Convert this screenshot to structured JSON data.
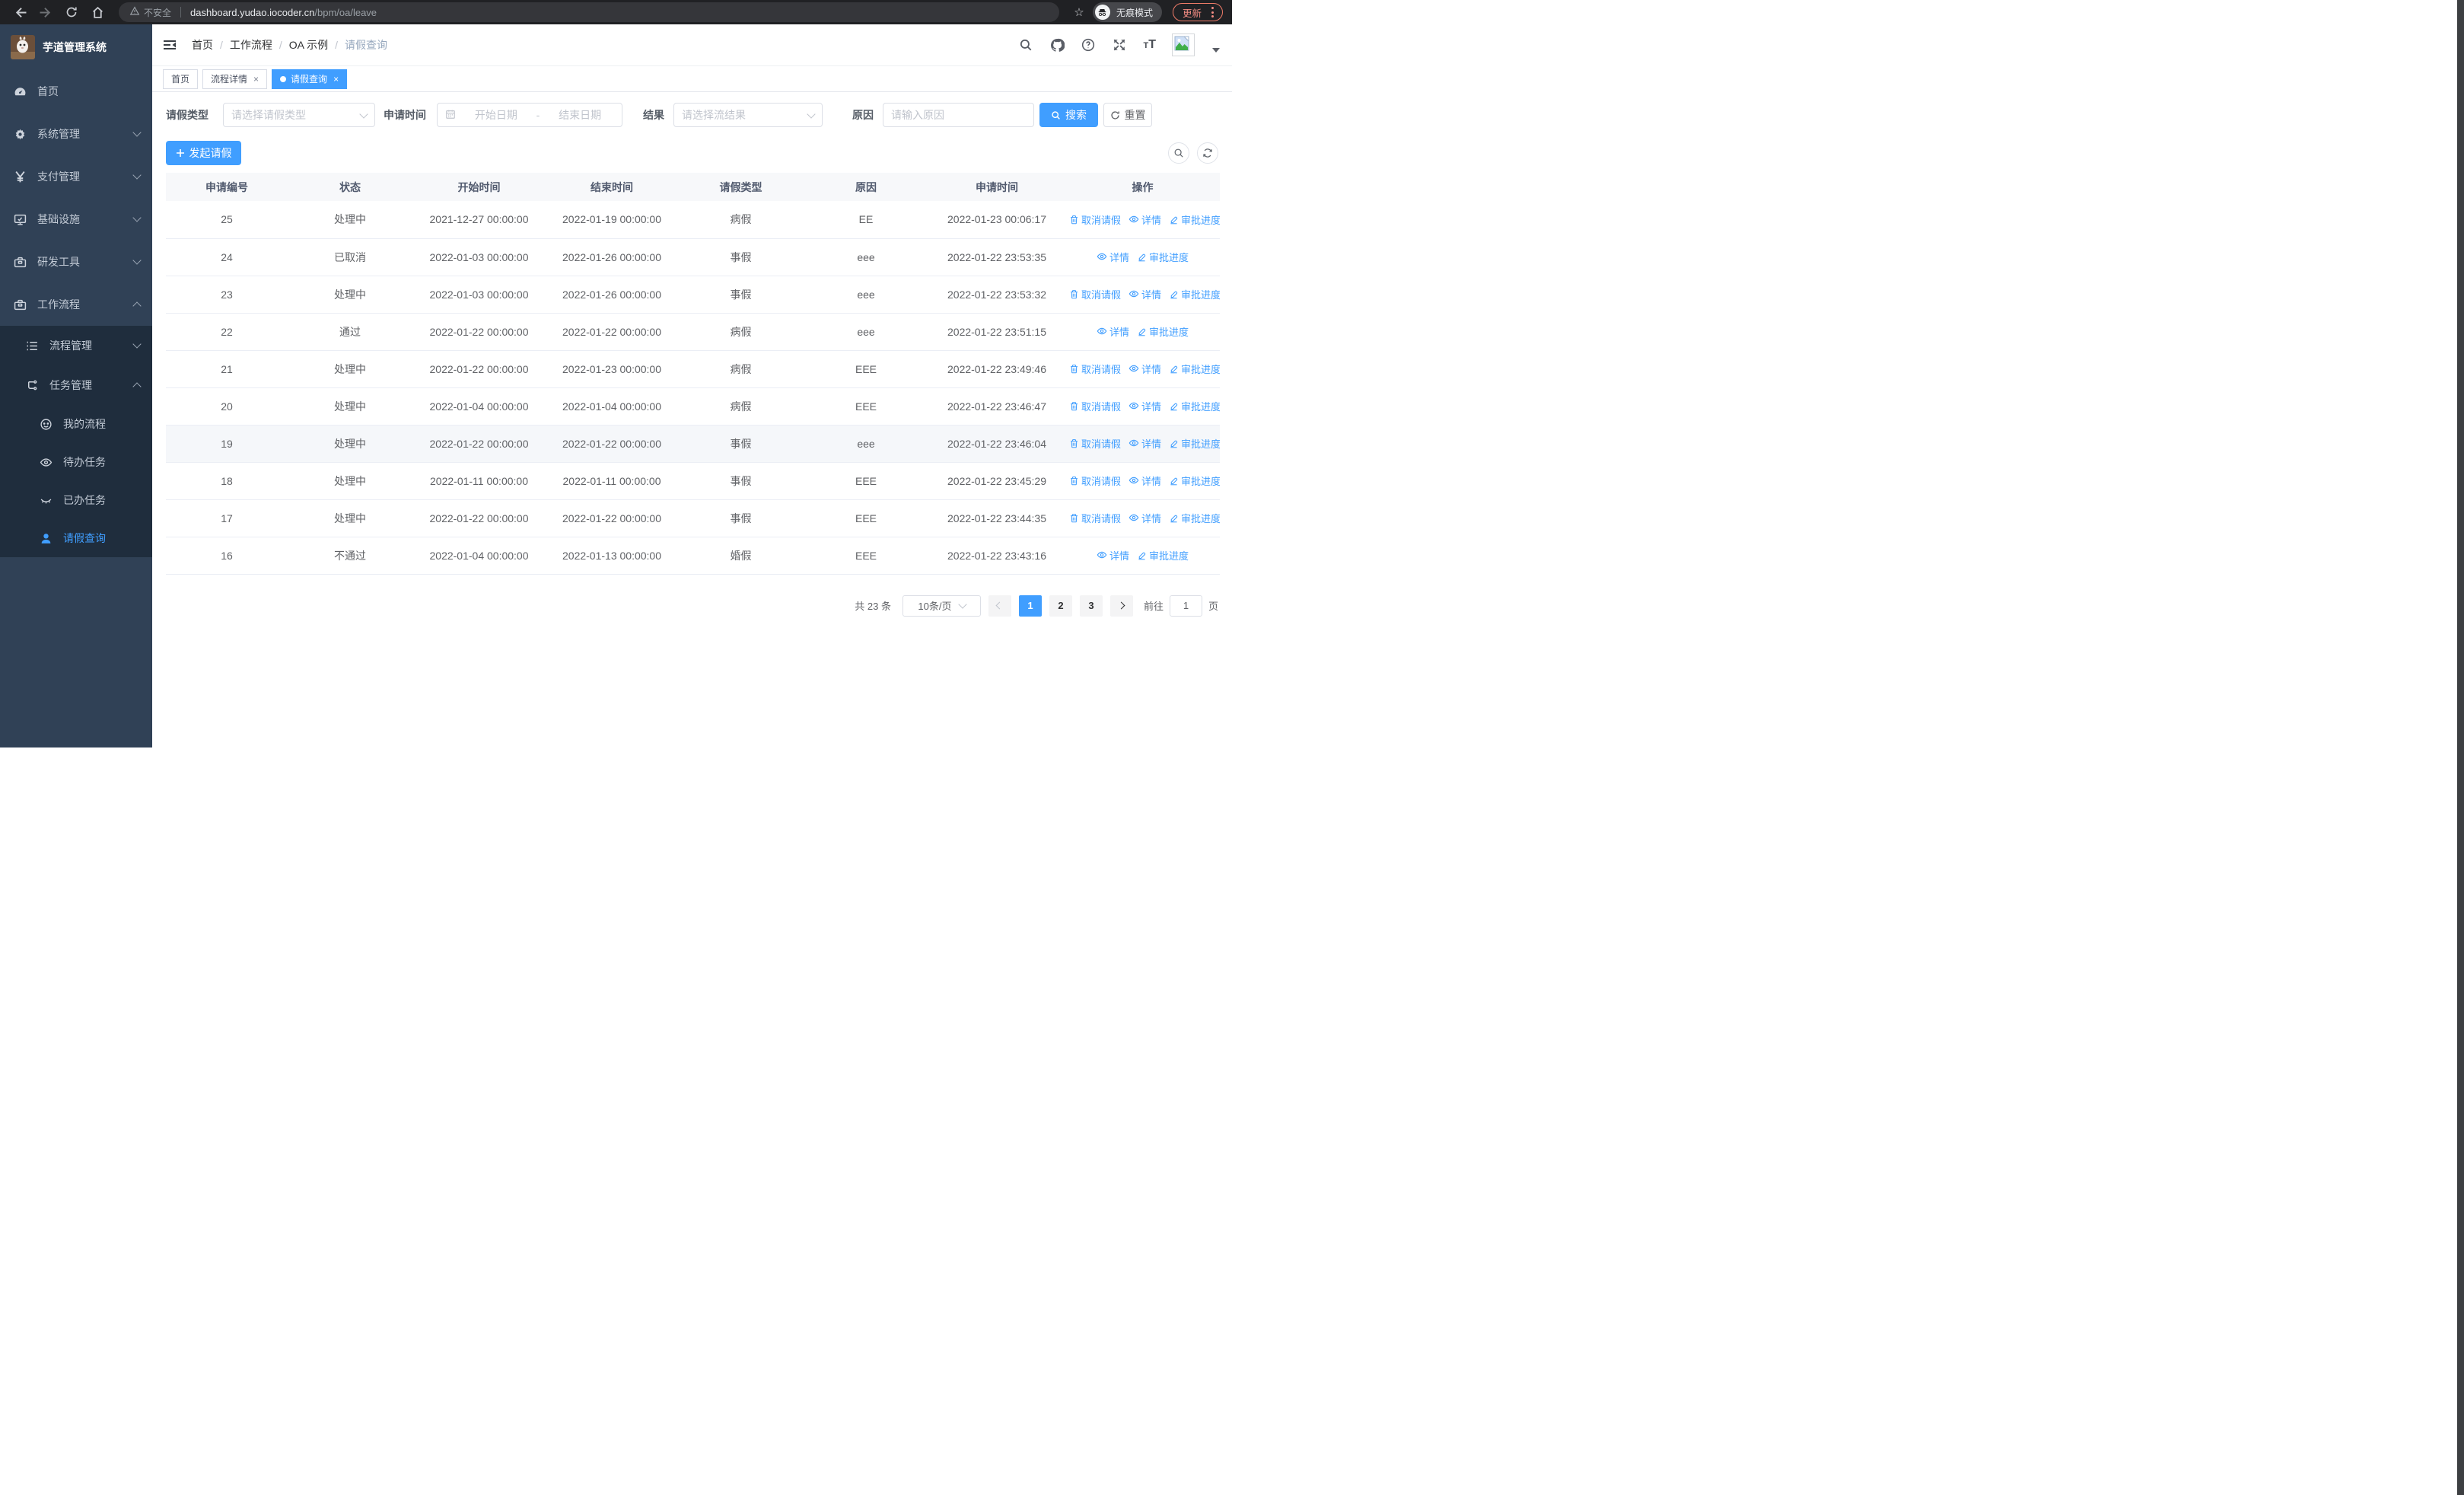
{
  "chrome": {
    "security_label": "不安全",
    "url_host": "dashboard.yudao.iocoder.cn",
    "url_path": "/bpm/oa/leave",
    "incognito_label": "无痕模式",
    "update_label": "更新"
  },
  "sidebar": {
    "title": "芋道管理系统",
    "items": [
      {
        "label": "首页"
      },
      {
        "label": "系统管理"
      },
      {
        "label": "支付管理"
      },
      {
        "label": "基础设施"
      },
      {
        "label": "研发工具"
      },
      {
        "label": "工作流程"
      }
    ],
    "submenu": [
      {
        "label": "流程管理"
      },
      {
        "label": "任务管理"
      }
    ],
    "tasks": [
      {
        "label": "我的流程"
      },
      {
        "label": "待办任务"
      },
      {
        "label": "已办任务"
      },
      {
        "label": "请假查询"
      }
    ]
  },
  "header": {
    "breadcrumb": [
      "首页",
      "工作流程",
      "OA 示例",
      "请假查询"
    ]
  },
  "tabs": [
    {
      "label": "首页"
    },
    {
      "label": "流程详情"
    },
    {
      "label": "请假查询"
    }
  ],
  "filters": {
    "type_label": "请假类型",
    "type_placeholder": "请选择请假类型",
    "time_label": "申请时间",
    "start_placeholder": "开始日期",
    "range_separator": "-",
    "end_placeholder": "结束日期",
    "result_label": "结果",
    "result_placeholder": "请选择流结果",
    "reason_label": "原因",
    "reason_placeholder": "请输入原因",
    "search_label": "搜索",
    "reset_label": "重置"
  },
  "toolbar": {
    "create_label": "发起请假"
  },
  "table": {
    "columns": [
      "申请编号",
      "状态",
      "开始时间",
      "结束时间",
      "请假类型",
      "原因",
      "申请时间",
      "操作"
    ],
    "action_labels": {
      "cancel": "取消请假",
      "detail": "详情",
      "progress": "审批进度"
    },
    "rows": [
      {
        "id": "25",
        "status": "处理中",
        "start": "2021-12-27 00:00:00",
        "end": "2022-01-19 00:00:00",
        "type": "病假",
        "reason": "EE",
        "applied": "2022-01-23 00:06:17",
        "actions": [
          "cancel",
          "detail",
          "progress"
        ],
        "highlighted": false
      },
      {
        "id": "24",
        "status": "已取消",
        "start": "2022-01-03 00:00:00",
        "end": "2022-01-26 00:00:00",
        "type": "事假",
        "reason": "eee",
        "applied": "2022-01-22 23:53:35",
        "actions": [
          "detail",
          "progress"
        ],
        "highlighted": false
      },
      {
        "id": "23",
        "status": "处理中",
        "start": "2022-01-03 00:00:00",
        "end": "2022-01-26 00:00:00",
        "type": "事假",
        "reason": "eee",
        "applied": "2022-01-22 23:53:32",
        "actions": [
          "cancel",
          "detail",
          "progress"
        ],
        "highlighted": false
      },
      {
        "id": "22",
        "status": "通过",
        "start": "2022-01-22 00:00:00",
        "end": "2022-01-22 00:00:00",
        "type": "病假",
        "reason": "eee",
        "applied": "2022-01-22 23:51:15",
        "actions": [
          "detail",
          "progress"
        ],
        "highlighted": false
      },
      {
        "id": "21",
        "status": "处理中",
        "start": "2022-01-22 00:00:00",
        "end": "2022-01-23 00:00:00",
        "type": "病假",
        "reason": "EEE",
        "applied": "2022-01-22 23:49:46",
        "actions": [
          "cancel",
          "detail",
          "progress"
        ],
        "highlighted": false
      },
      {
        "id": "20",
        "status": "处理中",
        "start": "2022-01-04 00:00:00",
        "end": "2022-01-04 00:00:00",
        "type": "病假",
        "reason": "EEE",
        "applied": "2022-01-22 23:46:47",
        "actions": [
          "cancel",
          "detail",
          "progress"
        ],
        "highlighted": false
      },
      {
        "id": "19",
        "status": "处理中",
        "start": "2022-01-22 00:00:00",
        "end": "2022-01-22 00:00:00",
        "type": "事假",
        "reason": "eee",
        "applied": "2022-01-22 23:46:04",
        "actions": [
          "cancel",
          "detail",
          "progress"
        ],
        "highlighted": true
      },
      {
        "id": "18",
        "status": "处理中",
        "start": "2022-01-11 00:00:00",
        "end": "2022-01-11 00:00:00",
        "type": "事假",
        "reason": "EEE",
        "applied": "2022-01-22 23:45:29",
        "actions": [
          "cancel",
          "detail",
          "progress"
        ],
        "highlighted": false
      },
      {
        "id": "17",
        "status": "处理中",
        "start": "2022-01-22 00:00:00",
        "end": "2022-01-22 00:00:00",
        "type": "事假",
        "reason": "EEE",
        "applied": "2022-01-22 23:44:35",
        "actions": [
          "cancel",
          "detail",
          "progress"
        ],
        "highlighted": false
      },
      {
        "id": "16",
        "status": "不通过",
        "start": "2022-01-04 00:00:00",
        "end": "2022-01-13 00:00:00",
        "type": "婚假",
        "reason": "EEE",
        "applied": "2022-01-22 23:43:16",
        "actions": [
          "detail",
          "progress"
        ],
        "highlighted": false
      }
    ]
  },
  "pagination": {
    "total_label": "共 23 条",
    "page_size_label": "10条/页",
    "pages": [
      "1",
      "2",
      "3"
    ],
    "active_page": "1",
    "goto_label": "前往",
    "goto_value": "1",
    "unit_label": "页"
  },
  "colors": {
    "primary": "#409eff",
    "sidebar_bg": "#304156",
    "submenu_bg": "#1f2d3d",
    "chrome_bg": "#202124",
    "update_accent": "#f28b82"
  }
}
